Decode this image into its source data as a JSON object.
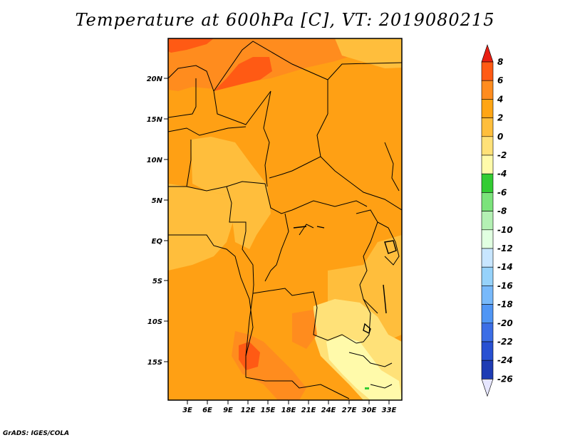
{
  "title": "Temperature at 600hPa [C], VT: 2019080215",
  "footer": "GrADS: IGES/COLA",
  "lat_ticks": [
    "20N",
    "15N",
    "10N",
    "5N",
    "EQ",
    "5S",
    "10S",
    "15S"
  ],
  "lon_ticks": [
    "3E",
    "6E",
    "9E",
    "12E",
    "15E",
    "18E",
    "21E",
    "24E",
    "27E",
    "30E",
    "33E"
  ],
  "colorbar": {
    "labels": [
      "8",
      "6",
      "4",
      "2",
      "0",
      "-2",
      "-4",
      "-6",
      "-8",
      "-10",
      "-12",
      "-14",
      "-16",
      "-18",
      "-20",
      "-22",
      "-24",
      "-26"
    ],
    "colors": [
      "#e81e12",
      "#ff5a14",
      "#ff8c1e",
      "#ffa514",
      "#ffbe3c",
      "#ffe178",
      "#fffaaa",
      "#33cc33",
      "#7be37b",
      "#b4f0b4",
      "#e1ffe1",
      "#c8e6ff",
      "#96d2fa",
      "#78b9fa",
      "#5096f5",
      "#3c6ee6",
      "#2850d2",
      "#1e3cb4",
      "#0a1464"
    ]
  },
  "palette": {
    "orange": "#ffa014",
    "light_orange": "#ffbe3c",
    "dark_orange": "#ff8c1e",
    "red_orange": "#ff5a14",
    "pale_yellow": "#ffe178",
    "cream": "#fffaaa",
    "green": "#33cc33"
  }
}
